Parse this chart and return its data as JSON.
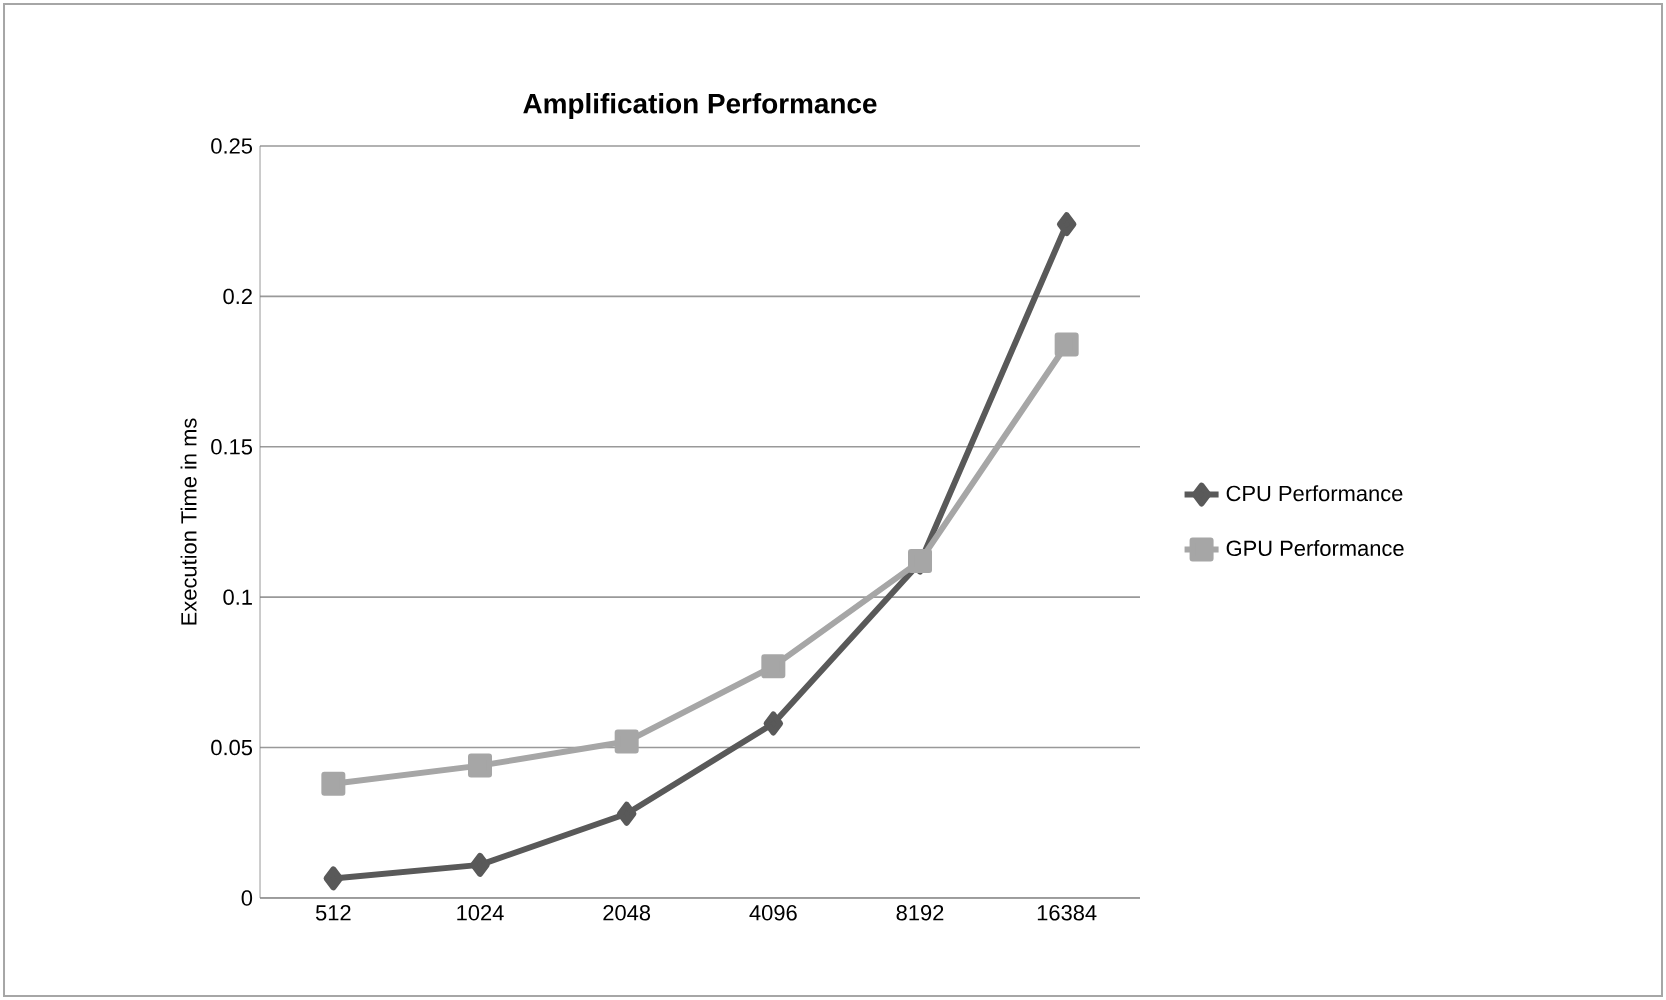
{
  "chart_data": {
    "type": "line",
    "title": "Amplification Performance",
    "ylabel": "Execution Time in ms",
    "categories": [
      "512",
      "1024",
      "2048",
      "4096",
      "8192",
      "16384"
    ],
    "series": [
      {
        "name": "CPU Performance",
        "color": "#595959",
        "marker": "diamond",
        "values": [
          0.0065,
          0.011,
          0.028,
          0.058,
          0.1115,
          0.224
        ]
      },
      {
        "name": "GPU Performance",
        "color": "#a6a6a6",
        "marker": "square",
        "values": [
          0.038,
          0.044,
          0.052,
          0.077,
          0.112,
          0.184
        ]
      }
    ],
    "ylim": [
      0,
      0.25
    ],
    "yticks": [
      0,
      0.05,
      0.1,
      0.15,
      0.2,
      0.25
    ],
    "grid": "y",
    "legend": "right"
  }
}
